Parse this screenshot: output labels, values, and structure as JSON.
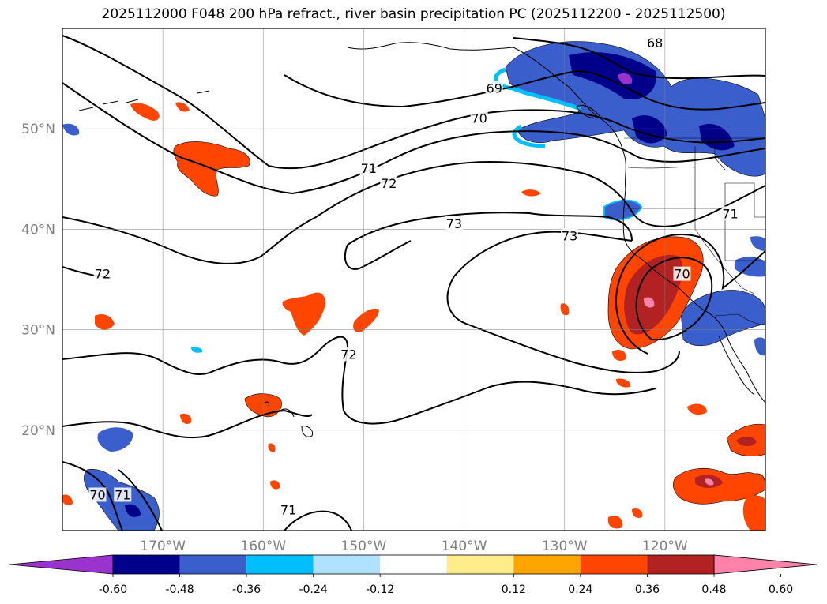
{
  "title": "2025112000 F048 200 hPa refract., river basin precipitation PC (2025112200 - 2025112500)",
  "map": {
    "lon_range": [
      -180,
      -110
    ],
    "lat_range": [
      10,
      60
    ],
    "lon_gridlines": [
      -170,
      -160,
      -150,
      -140,
      -130,
      -120
    ],
    "lat_gridlines": [
      20,
      30,
      40,
      50
    ],
    "lon_labels": [
      "170°W",
      "160°W",
      "150°W",
      "140°W",
      "130°W",
      "120°W"
    ],
    "lat_labels": [
      "20°N",
      "30°N",
      "40°N",
      "50°N"
    ],
    "contour_labels": [
      {
        "text": "68",
        "lon": -121,
        "lat": 58.5
      },
      {
        "text": "69",
        "lon": -137,
        "lat": 54
      },
      {
        "text": "70",
        "lon": -138.5,
        "lat": 51
      },
      {
        "text": "71",
        "lon": -149.5,
        "lat": 46
      },
      {
        "text": "72",
        "lon": -147.5,
        "lat": 44.5
      },
      {
        "text": "73",
        "lon": -141,
        "lat": 40.5
      },
      {
        "text": "73",
        "lon": -129.5,
        "lat": 39.3
      },
      {
        "text": "72",
        "lon": -176,
        "lat": 35.5
      },
      {
        "text": "72",
        "lon": -151.5,
        "lat": 27.5
      },
      {
        "text": "70",
        "lon": -118.3,
        "lat": 35.5
      },
      {
        "text": "71",
        "lon": -113.5,
        "lat": 41.5
      },
      {
        "text": "70",
        "lon": -176.5,
        "lat": 13.5
      },
      {
        "text": "71",
        "lon": -174,
        "lat": 13.5
      },
      {
        "text": "71",
        "lon": -157.5,
        "lat": 12
      }
    ]
  },
  "colorbar": {
    "ticks": [
      "-0.60",
      "-0.48",
      "-0.36",
      "-0.24",
      "-0.12",
      "0.12",
      "0.24",
      "0.36",
      "0.48",
      "0.60"
    ],
    "colors": [
      "#9a32cd",
      "#00008b",
      "#3a5fcd",
      "#00bfff",
      "#b0e2ff",
      "#ffffff",
      "#ffec8b",
      "#ffa500",
      "#ff4500",
      "#b22222",
      "#ff82ab"
    ]
  }
}
